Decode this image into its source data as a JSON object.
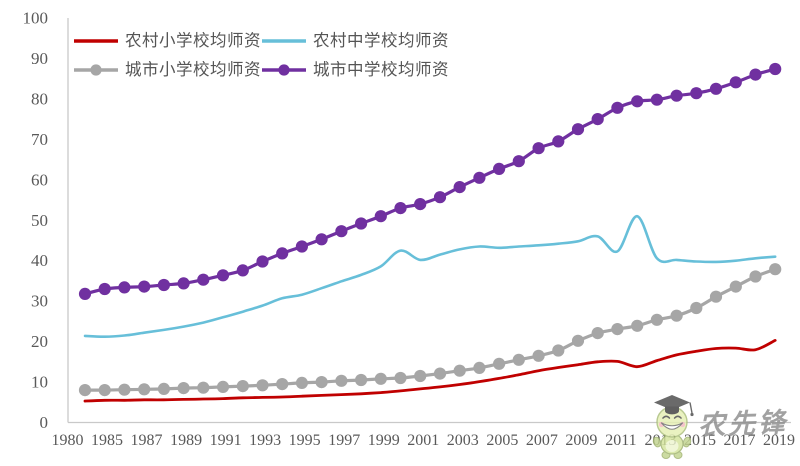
{
  "colors": {
    "rural_primary": "#C00000",
    "rural_secondary": "#67BFD9",
    "urban_primary": "#A6A6A6",
    "urban_secondary": "#7030A0",
    "axis_line": "#C9C9C9",
    "tick_text": "#595959",
    "legend_text": "#555555",
    "watermark_text": "#8D8D8D"
  },
  "watermark": {
    "text": "农先锋",
    "mascot": "graduate-smiley-mascot"
  },
  "chart_data": {
    "type": "line",
    "title": "",
    "xlabel": "",
    "ylabel": "",
    "grid": false,
    "legend_position": "top-left",
    "ylim": [
      0,
      100
    ],
    "y_ticks": [
      0,
      10,
      20,
      30,
      40,
      50,
      60,
      70,
      80,
      90,
      100
    ],
    "x_tick_labels": [
      "1980",
      "1985",
      "1987",
      "1989",
      "1991",
      "1993",
      "1995",
      "1997",
      "1999",
      "2001",
      "2003",
      "2005",
      "2007",
      "2009",
      "2011",
      "2013",
      "2015",
      "2017",
      "2019"
    ],
    "x_categories": [
      1980,
      1985,
      1986,
      1987,
      1988,
      1989,
      1990,
      1991,
      1992,
      1993,
      1994,
      1995,
      1996,
      1997,
      1998,
      1999,
      2000,
      2001,
      2002,
      2003,
      2004,
      2005,
      2006,
      2007,
      2008,
      2009,
      2010,
      2011,
      2012,
      2013,
      2014,
      2015,
      2016,
      2017,
      2018,
      2019
    ],
    "series": [
      {
        "name": "农村小学校均师资",
        "color": "#C00000",
        "marker": false,
        "line_width": 2.8,
        "values": [
          5.3,
          5.5,
          5.5,
          5.6,
          5.6,
          5.7,
          5.8,
          5.9,
          6.1,
          6.2,
          6.3,
          6.5,
          6.7,
          6.9,
          7.1,
          7.4,
          7.8,
          8.3,
          8.8,
          9.4,
          10.1,
          10.9,
          11.8,
          12.8,
          13.6,
          14.3,
          15.0,
          15.1,
          13.8,
          15.3,
          16.7,
          17.6,
          18.3,
          18.4,
          18.0,
          20.3
        ]
      },
      {
        "name": "农村中学校均师资",
        "color": "#67BFD9",
        "marker": false,
        "line_width": 2.6,
        "values": [
          21.4,
          21.2,
          21.5,
          22.2,
          22.9,
          23.7,
          24.7,
          26.0,
          27.4,
          28.9,
          30.7,
          31.6,
          33.2,
          34.9,
          36.5,
          38.6,
          42.5,
          40.2,
          41.5,
          42.8,
          43.5,
          43.2,
          43.5,
          43.8,
          44.2,
          44.8,
          46.0,
          42.3,
          51.0,
          40.6,
          40.2,
          39.8,
          39.7,
          40.0,
          40.6,
          41.0
        ]
      },
      {
        "name": "城市小学校均师资",
        "color": "#A6A6A6",
        "marker": true,
        "line_width": 3.2,
        "values": [
          8.0,
          8.0,
          8.1,
          8.2,
          8.3,
          8.5,
          8.6,
          8.8,
          9.0,
          9.2,
          9.5,
          9.8,
          10.0,
          10.3,
          10.5,
          10.8,
          11.0,
          11.5,
          12.1,
          12.8,
          13.5,
          14.5,
          15.5,
          16.5,
          17.8,
          20.2,
          22.1,
          23.1,
          23.9,
          25.4,
          26.4,
          28.3,
          31.1,
          33.6,
          36.1,
          37.9
        ]
      },
      {
        "name": "城市中学校均师资",
        "color": "#7030A0",
        "marker": true,
        "line_width": 3.2,
        "values": [
          31.8,
          33.0,
          33.4,
          33.6,
          34.0,
          34.4,
          35.3,
          36.4,
          37.6,
          39.8,
          41.8,
          43.5,
          45.3,
          47.3,
          49.2,
          51.0,
          53.0,
          54.0,
          55.7,
          58.2,
          60.5,
          62.7,
          64.6,
          67.8,
          69.5,
          72.5,
          75.0,
          77.8,
          79.4,
          79.8,
          80.8,
          81.4,
          82.5,
          84.1,
          86.0,
          87.4
        ]
      }
    ]
  }
}
